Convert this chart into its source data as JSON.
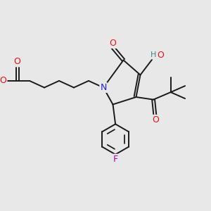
{
  "bg_color": "#e8e8e8",
  "bond_color": "#1a1a1a",
  "atom_colors": {
    "O_red": "#ee1111",
    "N_blue": "#2222dd",
    "F_magenta": "#bb00bb",
    "H_teal": "#3a8888",
    "C_black": "#1a1a1a"
  },
  "figsize": [
    3.0,
    3.0
  ],
  "dpi": 100,
  "xlim": [
    0,
    10
  ],
  "ylim": [
    0,
    10
  ]
}
